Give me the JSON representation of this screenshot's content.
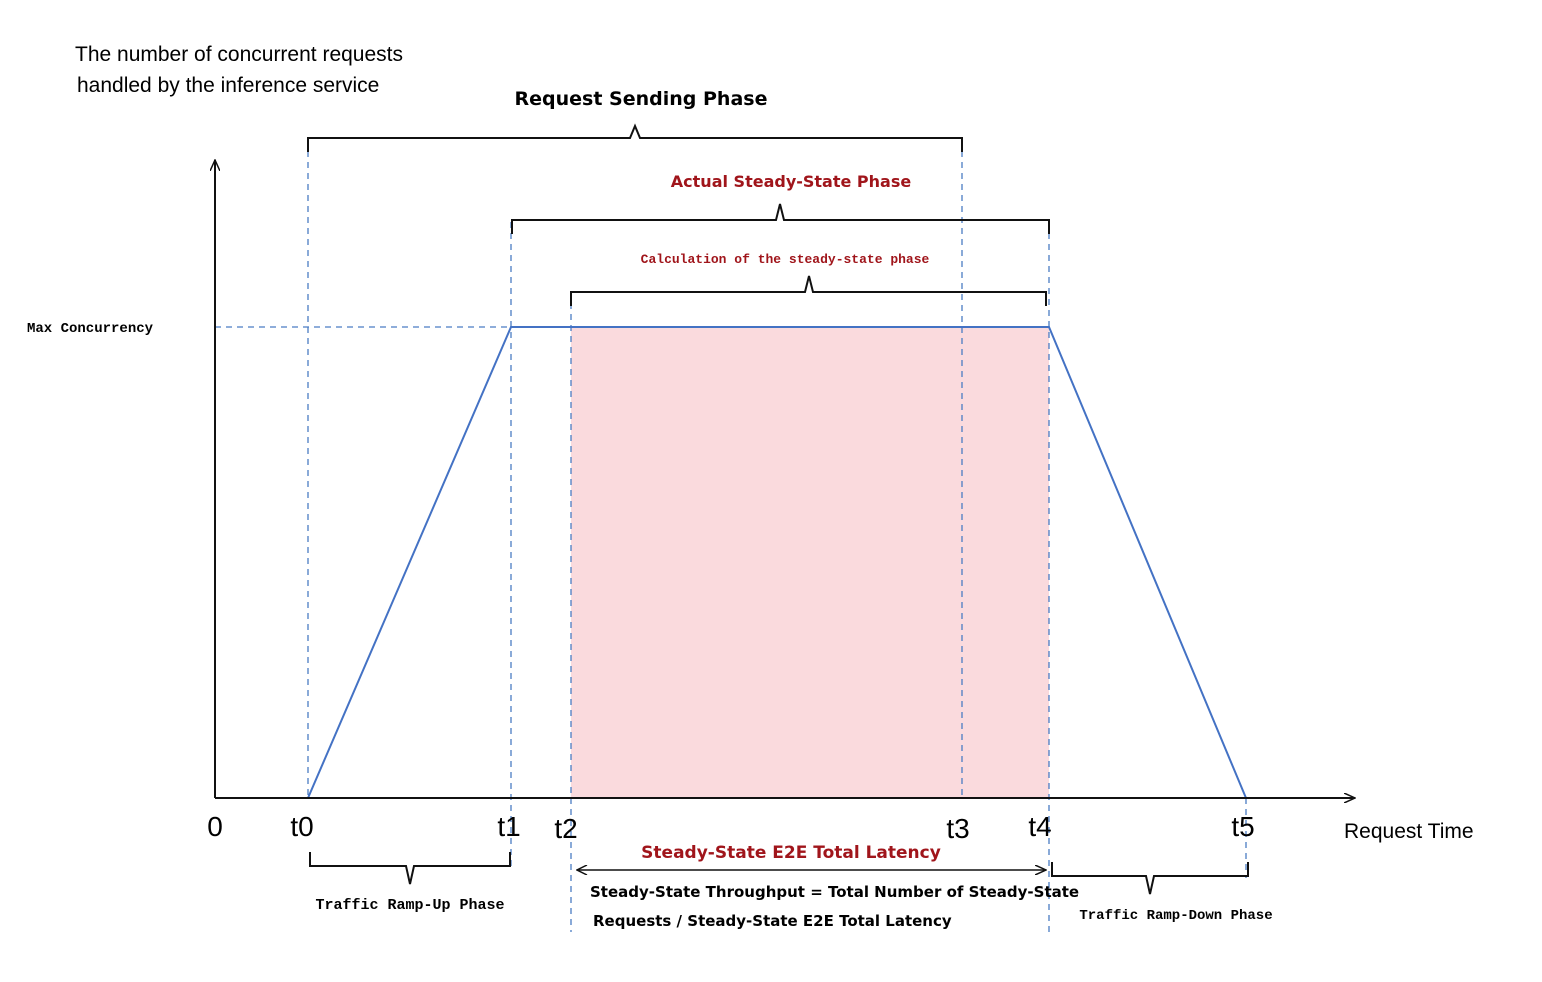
{
  "y_axis_label": [
    "The number of concurrent requests",
    "handled by the inference service"
  ],
  "phases": {
    "request_sending": "Request Sending Phase",
    "actual_steady_state": "Actual Steady-State Phase",
    "calculation": "Calculation of the steady-state phase",
    "ramp_up": "Traffic Ramp-Up Phase",
    "ramp_down": "Traffic Ramp-Down Phase"
  },
  "max_concurrency": "Max Concurrency",
  "x_ticks": [
    "0",
    "t0",
    "t1",
    "t2",
    "t3",
    "t4",
    "t5"
  ],
  "x_axis_label": "Request Time",
  "latency_label": "Steady-State E2E Total Latency",
  "formula": [
    "Steady-State Throughput = Total Number of Steady-State",
    "Requests / Steady-State E2E Total Latency"
  ]
}
